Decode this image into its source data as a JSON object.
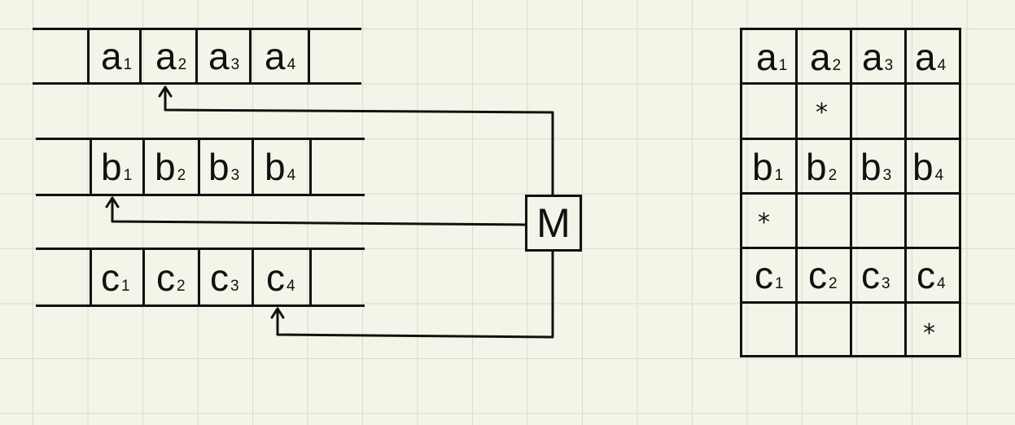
{
  "left_arrays": [
    {
      "id": "a",
      "cells": [
        {
          "main": "a",
          "sub": "1"
        },
        {
          "main": "a",
          "sub": "2"
        },
        {
          "main": "a",
          "sub": "3"
        },
        {
          "main": "a",
          "sub": "4"
        }
      ]
    },
    {
      "id": "b",
      "cells": [
        {
          "main": "b",
          "sub": "1"
        },
        {
          "main": "b",
          "sub": "2"
        },
        {
          "main": "b",
          "sub": "3"
        },
        {
          "main": "b",
          "sub": "4"
        }
      ]
    },
    {
      "id": "c",
      "cells": [
        {
          "main": "c",
          "sub": "1"
        },
        {
          "main": "c",
          "sub": "2"
        },
        {
          "main": "c",
          "sub": "3"
        },
        {
          "main": "c",
          "sub": "4"
        }
      ]
    }
  ],
  "module": {
    "label": "M"
  },
  "arrows": [
    {
      "from": "M",
      "to": "a2"
    },
    {
      "from": "M",
      "to": "b1"
    },
    {
      "from": "M",
      "to": "c4"
    }
  ],
  "right_table": {
    "rows": [
      [
        {
          "main": "a",
          "sub": "1"
        },
        {
          "main": "a",
          "sub": "2"
        },
        {
          "main": "a",
          "sub": "3"
        },
        {
          "main": "a",
          "sub": "4"
        }
      ],
      [
        {
          "main": "",
          "sub": ""
        },
        {
          "main": "*",
          "sub": ""
        },
        {
          "main": "",
          "sub": ""
        },
        {
          "main": "",
          "sub": ""
        }
      ],
      [
        {
          "main": "b",
          "sub": "1"
        },
        {
          "main": "b",
          "sub": "2"
        },
        {
          "main": "b",
          "sub": "3"
        },
        {
          "main": "b",
          "sub": "4"
        }
      ],
      [
        {
          "main": "*",
          "sub": ""
        },
        {
          "main": "",
          "sub": ""
        },
        {
          "main": "",
          "sub": ""
        },
        {
          "main": "",
          "sub": ""
        }
      ],
      [
        {
          "main": "c",
          "sub": "1"
        },
        {
          "main": "c",
          "sub": "2"
        },
        {
          "main": "c",
          "sub": "3"
        },
        {
          "main": "c",
          "sub": "4"
        }
      ],
      [
        {
          "main": "",
          "sub": ""
        },
        {
          "main": "",
          "sub": ""
        },
        {
          "main": "",
          "sub": ""
        },
        {
          "main": "*",
          "sub": ""
        }
      ]
    ]
  }
}
